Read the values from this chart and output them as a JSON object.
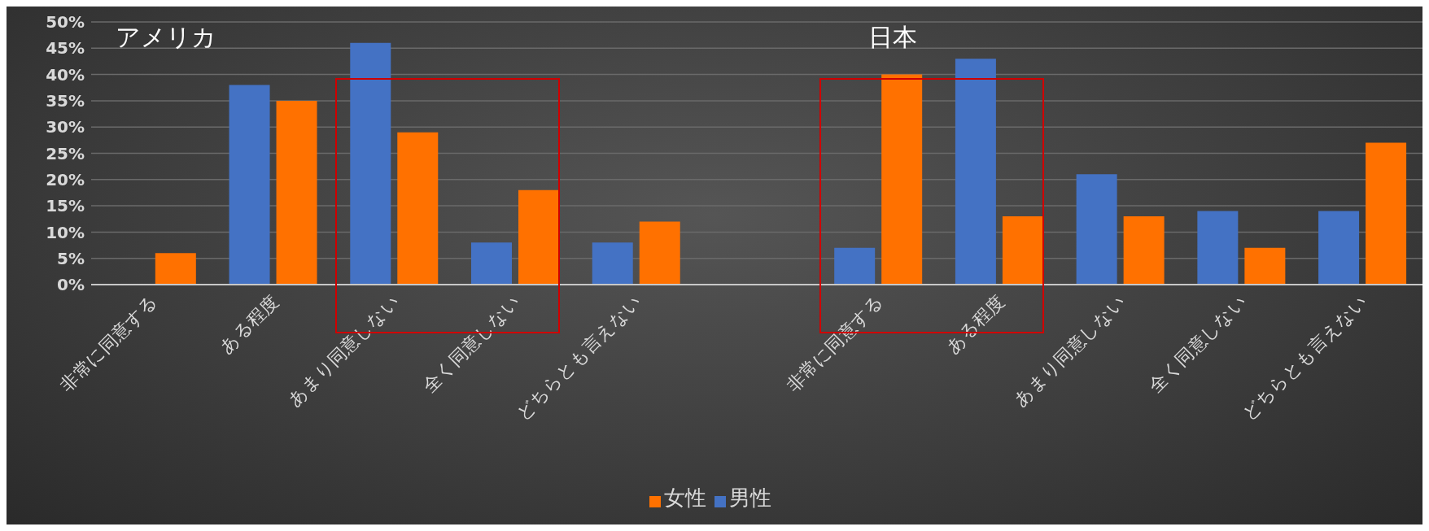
{
  "chart_data": {
    "type": "bar",
    "categories": [
      "非常に同意する",
      "ある程度",
      "あまり同意しない",
      "全く同意しない",
      "どちらとも言えない",
      null,
      "非常に同意する",
      "ある程度",
      "あまり同意しない",
      "全く同意しない",
      "どちらとも言えない"
    ],
    "series": [
      {
        "name": "男性",
        "color": "#4472c4",
        "values": [
          0,
          38,
          46,
          8,
          8,
          null,
          7,
          43,
          21,
          14,
          14
        ]
      },
      {
        "name": "女性",
        "color": "#ff7100",
        "values": [
          6,
          35,
          29,
          18,
          12,
          null,
          40,
          13,
          13,
          7,
          27
        ]
      }
    ],
    "ylim": [
      0,
      50
    ],
    "yticks": [
      {
        "value": 0,
        "label": "0%"
      },
      {
        "value": 5,
        "label": "5%"
      },
      {
        "value": 10,
        "label": "10%"
      },
      {
        "value": 15,
        "label": "15%"
      },
      {
        "value": 20,
        "label": "20%"
      },
      {
        "value": 25,
        "label": "25%"
      },
      {
        "value": 30,
        "label": "30%"
      },
      {
        "value": 35,
        "label": "35%"
      },
      {
        "value": 40,
        "label": "40%"
      },
      {
        "value": 45,
        "label": "45%"
      },
      {
        "value": 50,
        "label": "50%"
      }
    ],
    "annotations": [
      "アメリカ",
      "日本"
    ],
    "grid": "y",
    "legend": "bottom"
  }
}
